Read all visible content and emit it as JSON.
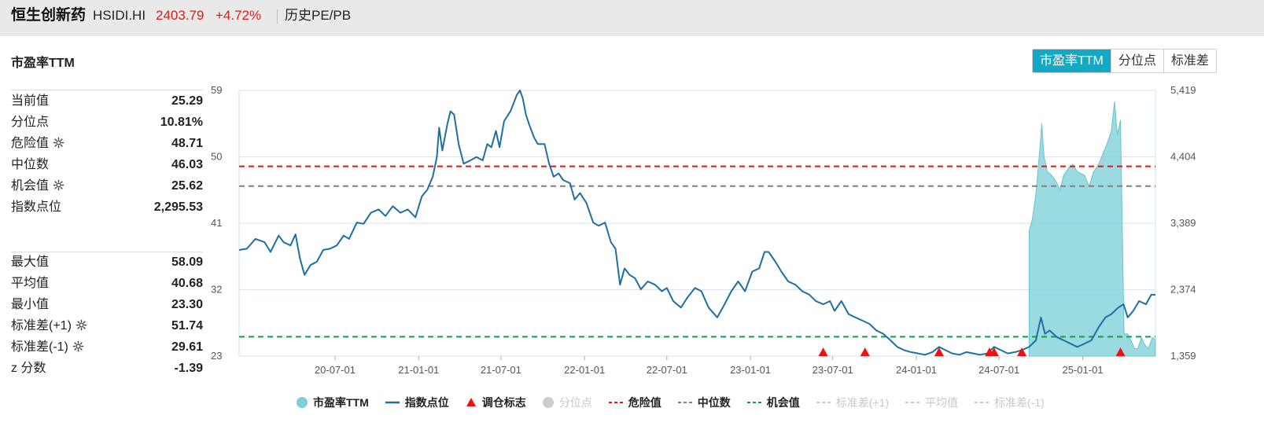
{
  "header": {
    "name": "恒生创新药",
    "code": "HSIDI.HI",
    "price": "2403.79",
    "change": "+4.72%",
    "link": "历史PE/PB"
  },
  "section_title": "市盈率TTM",
  "toggle_buttons": [
    "市盈率TTM",
    "分位点",
    "标准差"
  ],
  "stats_top": [
    {
      "label": "当前值",
      "value": "25.29",
      "gear": false
    },
    {
      "label": "分位点",
      "value": "10.81%",
      "gear": false
    },
    {
      "label": "危险值",
      "value": "48.71",
      "gear": true
    },
    {
      "label": "中位数",
      "value": "46.03",
      "gear": false
    },
    {
      "label": "机会值",
      "value": "25.62",
      "gear": true
    },
    {
      "label": "指数点位",
      "value": "2,295.53",
      "gear": false
    }
  ],
  "stats_bottom": [
    {
      "label": "最大值",
      "value": "58.09",
      "gear": false
    },
    {
      "label": "平均值",
      "value": "40.68",
      "gear": false
    },
    {
      "label": "最小值",
      "value": "23.30",
      "gear": false
    },
    {
      "label": "标准差(+1)",
      "value": "51.74",
      "gear": true
    },
    {
      "label": "标准差(-1)",
      "value": "29.61",
      "gear": true
    },
    {
      "label": "z 分数",
      "value": "-1.39",
      "gear": false
    }
  ],
  "legend": [
    {
      "label": "市盈率TTM",
      "type": "dot",
      "color": "#7ecfd9",
      "active": true
    },
    {
      "label": "指数点位",
      "type": "line",
      "color": "#1f6fa0",
      "active": true
    },
    {
      "label": "调仓标志",
      "type": "triangle",
      "color": "#ee1111",
      "active": true
    },
    {
      "label": "分位点",
      "type": "dot",
      "color": "#cccccc",
      "active": false
    },
    {
      "label": "危险值",
      "type": "dash",
      "color": "#cc1e1e",
      "active": true
    },
    {
      "label": "中位数",
      "type": "dash",
      "color": "#808080",
      "active": true
    },
    {
      "label": "机会值",
      "type": "dash",
      "color": "#1a9a4a",
      "active": true
    },
    {
      "label": "标准差(+1)",
      "type": "dash",
      "color": "#cccccc",
      "active": false
    },
    {
      "label": "平均值",
      "type": "dash",
      "color": "#cccccc",
      "active": false
    },
    {
      "label": "标准差(-1)",
      "type": "dash",
      "color": "#cccccc",
      "active": false
    }
  ],
  "chart_data": {
    "type": "line",
    "title": "",
    "x_ticks": [
      "20-07-01",
      "21-01-01",
      "21-07-01",
      "22-01-01",
      "22-07-01",
      "23-01-01",
      "23-07-01",
      "24-01-01",
      "24-07-01",
      "25-01-01"
    ],
    "y_left": {
      "ticks": [
        "59",
        "50",
        "41",
        "32",
        "23"
      ],
      "range": [
        23,
        59
      ]
    },
    "y_right": {
      "ticks": [
        "5,419",
        "4,404",
        "3,389",
        "2,374",
        "1,359"
      ],
      "range": [
        1359,
        5419
      ]
    },
    "x_range": [
      "2019-12-03",
      "2025-06-10"
    ],
    "reference_lines": [
      {
        "name": "危险值",
        "value": 48.71,
        "color": "#cc1e1e"
      },
      {
        "name": "中位数",
        "value": 46.03,
        "color": "#808080"
      },
      {
        "name": "机会值",
        "value": 25.62,
        "color": "#1a9a4a"
      }
    ],
    "series": [
      {
        "name": "指数点位",
        "axis": "right",
        "color": "#1f6fa0",
        "points": [
          [
            "2019-12-03",
            2980
          ],
          [
            "2019-12-20",
            3000
          ],
          [
            "2020-01-08",
            3150
          ],
          [
            "2020-01-28",
            3100
          ],
          [
            "2020-02-10",
            2950
          ],
          [
            "2020-02-28",
            3200
          ],
          [
            "2020-03-10",
            3100
          ],
          [
            "2020-03-25",
            3050
          ],
          [
            "2020-04-05",
            3220
          ],
          [
            "2020-04-15",
            2850
          ],
          [
            "2020-04-25",
            2600
          ],
          [
            "2020-05-08",
            2750
          ],
          [
            "2020-05-22",
            2800
          ],
          [
            "2020-06-05",
            2980
          ],
          [
            "2020-06-20",
            3000
          ],
          [
            "2020-07-05",
            3050
          ],
          [
            "2020-07-20",
            3200
          ],
          [
            "2020-08-01",
            3150
          ],
          [
            "2020-08-18",
            3400
          ],
          [
            "2020-09-02",
            3380
          ],
          [
            "2020-09-18",
            3550
          ],
          [
            "2020-10-05",
            3600
          ],
          [
            "2020-10-20",
            3500
          ],
          [
            "2020-11-05",
            3650
          ],
          [
            "2020-11-22",
            3550
          ],
          [
            "2020-12-08",
            3600
          ],
          [
            "2020-12-25",
            3480
          ],
          [
            "2021-01-08",
            3800
          ],
          [
            "2021-01-20",
            3900
          ],
          [
            "2021-02-01",
            4100
          ],
          [
            "2021-02-10",
            4400
          ],
          [
            "2021-02-15",
            4850
          ],
          [
            "2021-02-22",
            4500
          ],
          [
            "2021-03-05",
            4900
          ],
          [
            "2021-03-12",
            5100
          ],
          [
            "2021-03-20",
            5050
          ],
          [
            "2021-03-30",
            4600
          ],
          [
            "2021-04-10",
            4300
          ],
          [
            "2021-04-25",
            4350
          ],
          [
            "2021-05-08",
            4400
          ],
          [
            "2021-05-22",
            4350
          ],
          [
            "2021-06-01",
            4600
          ],
          [
            "2021-06-10",
            4550
          ],
          [
            "2021-06-20",
            4800
          ],
          [
            "2021-06-28",
            4550
          ],
          [
            "2021-07-08",
            4950
          ],
          [
            "2021-07-22",
            5100
          ],
          [
            "2021-08-05",
            5350
          ],
          [
            "2021-08-12",
            5419
          ],
          [
            "2021-08-18",
            5300
          ],
          [
            "2021-08-25",
            5050
          ],
          [
            "2021-09-01",
            4900
          ],
          [
            "2021-09-12",
            4700
          ],
          [
            "2021-09-20",
            4600
          ],
          [
            "2021-10-05",
            4600
          ],
          [
            "2021-10-15",
            4300
          ],
          [
            "2021-10-25",
            4100
          ],
          [
            "2021-11-05",
            4150
          ],
          [
            "2021-11-15",
            4050
          ],
          [
            "2021-11-30",
            4000
          ],
          [
            "2021-12-10",
            3750
          ],
          [
            "2021-12-22",
            3850
          ],
          [
            "2022-01-05",
            3700
          ],
          [
            "2022-01-20",
            3400
          ],
          [
            "2022-02-01",
            3350
          ],
          [
            "2022-02-15",
            3400
          ],
          [
            "2022-02-28",
            3100
          ],
          [
            "2022-03-10",
            3000
          ],
          [
            "2022-03-20",
            2450
          ],
          [
            "2022-03-30",
            2700
          ],
          [
            "2022-04-10",
            2600
          ],
          [
            "2022-04-22",
            2550
          ],
          [
            "2022-05-05",
            2380
          ],
          [
            "2022-05-20",
            2500
          ],
          [
            "2022-06-05",
            2450
          ],
          [
            "2022-06-20",
            2350
          ],
          [
            "2022-07-01",
            2400
          ],
          [
            "2022-07-15",
            2200
          ],
          [
            "2022-08-01",
            2100
          ],
          [
            "2022-08-15",
            2250
          ],
          [
            "2022-09-01",
            2400
          ],
          [
            "2022-09-15",
            2350
          ],
          [
            "2022-10-01",
            2100
          ],
          [
            "2022-10-20",
            1950
          ],
          [
            "2022-11-01",
            2100
          ],
          [
            "2022-11-20",
            2350
          ],
          [
            "2022-12-05",
            2500
          ],
          [
            "2022-12-20",
            2350
          ],
          [
            "2023-01-05",
            2650
          ],
          [
            "2023-01-20",
            2700
          ],
          [
            "2023-02-01",
            2950
          ],
          [
            "2023-02-10",
            2950
          ],
          [
            "2023-02-25",
            2800
          ],
          [
            "2023-03-10",
            2650
          ],
          [
            "2023-03-25",
            2500
          ],
          [
            "2023-04-10",
            2450
          ],
          [
            "2023-04-25",
            2350
          ],
          [
            "2023-05-10",
            2300
          ],
          [
            "2023-05-25",
            2200
          ],
          [
            "2023-06-10",
            2150
          ],
          [
            "2023-06-25",
            2200
          ],
          [
            "2023-07-05",
            2050
          ],
          [
            "2023-07-20",
            2200
          ],
          [
            "2023-08-05",
            2000
          ],
          [
            "2023-08-20",
            1950
          ],
          [
            "2023-09-05",
            1900
          ],
          [
            "2023-09-20",
            1850
          ],
          [
            "2023-10-05",
            1750
          ],
          [
            "2023-10-20",
            1700
          ],
          [
            "2023-11-05",
            1600
          ],
          [
            "2023-11-20",
            1500
          ],
          [
            "2023-12-05",
            1450
          ],
          [
            "2023-12-20",
            1420
          ],
          [
            "2024-01-05",
            1400
          ],
          [
            "2024-01-20",
            1380
          ],
          [
            "2024-02-05",
            1420
          ],
          [
            "2024-02-20",
            1500
          ],
          [
            "2024-03-05",
            1450
          ],
          [
            "2024-03-20",
            1400
          ],
          [
            "2024-04-05",
            1380
          ],
          [
            "2024-04-20",
            1420
          ],
          [
            "2024-05-05",
            1400
          ],
          [
            "2024-05-20",
            1380
          ],
          [
            "2024-06-05",
            1400
          ],
          [
            "2024-06-20",
            1500
          ],
          [
            "2024-07-05",
            1450
          ],
          [
            "2024-07-20",
            1400
          ],
          [
            "2024-08-05",
            1420
          ],
          [
            "2024-08-20",
            1450
          ],
          [
            "2024-09-05",
            1500
          ],
          [
            "2024-09-20",
            1600
          ],
          [
            "2024-10-01",
            1950
          ],
          [
            "2024-10-10",
            1700
          ],
          [
            "2024-10-20",
            1750
          ],
          [
            "2024-11-05",
            1650
          ],
          [
            "2024-11-20",
            1600
          ],
          [
            "2024-12-05",
            1550
          ],
          [
            "2024-12-20",
            1500
          ],
          [
            "2025-01-05",
            1550
          ],
          [
            "2025-01-20",
            1600
          ],
          [
            "2025-02-05",
            1800
          ],
          [
            "2025-02-20",
            1950
          ],
          [
            "2025-03-05",
            2000
          ],
          [
            "2025-03-20",
            2100
          ],
          [
            "2025-04-01",
            2150
          ],
          [
            "2025-04-10",
            1950
          ],
          [
            "2025-04-22",
            2050
          ],
          [
            "2025-05-05",
            2200
          ],
          [
            "2025-05-20",
            2150
          ],
          [
            "2025-06-01",
            2300
          ],
          [
            "2025-06-10",
            2295
          ]
        ]
      },
      {
        "name": "市盈率TTM",
        "axis": "left",
        "type": "area",
        "color": "#7ecfd9",
        "points": [
          [
            "2024-09-05",
            40.0
          ],
          [
            "2024-09-12",
            41.5
          ],
          [
            "2024-09-20",
            45.0
          ],
          [
            "2024-09-28",
            50.5
          ],
          [
            "2024-10-03",
            54.5
          ],
          [
            "2024-10-08",
            50.0
          ],
          [
            "2024-10-15",
            48.0
          ],
          [
            "2024-10-25",
            47.5
          ],
          [
            "2024-11-05",
            46.5
          ],
          [
            "2024-11-12",
            45.5
          ],
          [
            "2024-11-20",
            47.5
          ],
          [
            "2024-12-01",
            48.5
          ],
          [
            "2024-12-10",
            49.0
          ],
          [
            "2024-12-20",
            48.0
          ],
          [
            "2025-01-05",
            47.5
          ],
          [
            "2025-01-15",
            46.0
          ],
          [
            "2025-01-25",
            48.0
          ],
          [
            "2025-02-05",
            49.0
          ],
          [
            "2025-02-15",
            50.5
          ],
          [
            "2025-02-25",
            52.0
          ],
          [
            "2025-03-05",
            53.5
          ],
          [
            "2025-03-12",
            57.5
          ],
          [
            "2025-03-18",
            53.0
          ],
          [
            "2025-03-25",
            55.0
          ],
          [
            "2025-04-02",
            26.0
          ],
          [
            "2025-04-10",
            26.0
          ],
          [
            "2025-04-18",
            25.0
          ],
          [
            "2025-04-25",
            24.0
          ],
          [
            "2025-05-02",
            24.0
          ],
          [
            "2025-05-10",
            25.5
          ],
          [
            "2025-05-18",
            24.5
          ],
          [
            "2025-05-25",
            24.0
          ],
          [
            "2025-06-03",
            25.5
          ],
          [
            "2025-06-10",
            25.29
          ]
        ]
      }
    ],
    "markers": {
      "name": "调仓标志",
      "dates": [
        "2023-06-10",
        "2023-09-10",
        "2024-02-20",
        "2024-06-10",
        "2024-06-20",
        "2024-08-20",
        "2025-03-25"
      ]
    }
  }
}
